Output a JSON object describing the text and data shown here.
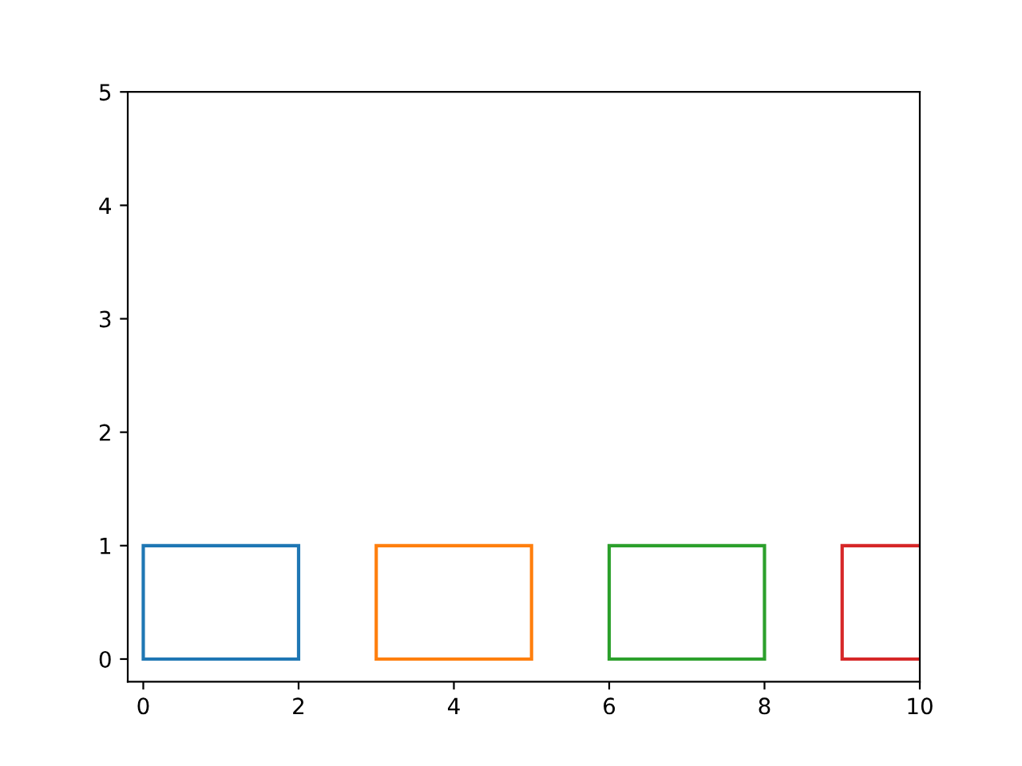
{
  "chart_data": {
    "type": "bar",
    "x": [
      1,
      4,
      7,
      10
    ],
    "values": [
      1,
      1,
      1,
      1
    ],
    "colors": [
      "#1f77b4",
      "#ff7f0e",
      "#2ca02c",
      "#d62728"
    ],
    "xlim": [
      -0.2,
      10
    ],
    "ylim": [
      -0.2,
      5
    ],
    "xticks": [
      0,
      2,
      4,
      6,
      8,
      10
    ],
    "yticks": [
      0,
      1,
      2,
      3,
      4,
      5
    ],
    "grid": false
  }
}
